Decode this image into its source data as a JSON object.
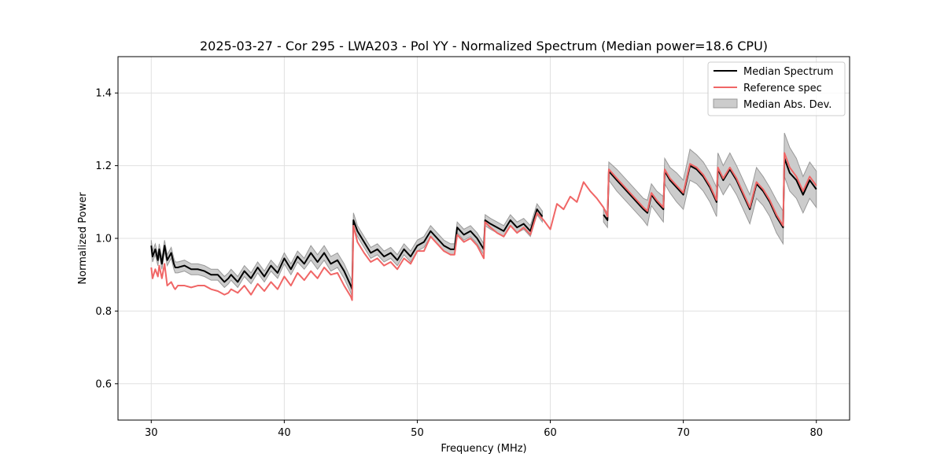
{
  "chart_data": {
    "type": "line",
    "title": "2025-03-27 - Cor 295 - LWA203 - Pol YY - Normalized Spectrum (Median power=18.6 CPU)",
    "xlabel": "Frequency (MHz)",
    "ylabel": "Normalized Power",
    "xlim": [
      27.5,
      82.5
    ],
    "ylim": [
      0.5,
      1.5
    ],
    "xticks": [
      30,
      40,
      50,
      60,
      70,
      80
    ],
    "yticks": [
      0.6,
      0.8,
      1.0,
      1.2,
      1.4
    ],
    "grid": true,
    "legend_position": "top-right",
    "legend": [
      "Median Spectrum",
      "Reference spec",
      "Median Abs. Dev."
    ],
    "colors": {
      "median": "#000000",
      "reference": "#f06666",
      "mad_fill": "#cccccc",
      "mad_edge": "#999999",
      "grid": "#e0e0e0"
    },
    "series": [
      {
        "name": "Median Spectrum",
        "x": [
          30.0,
          30.1,
          30.3,
          30.5,
          30.6,
          30.8,
          31.0,
          31.2,
          31.5,
          31.7,
          31.8,
          32.0,
          32.5,
          33.0,
          33.5,
          34.0,
          34.5,
          35.0,
          35.5,
          35.8,
          36.0,
          36.5,
          37.0,
          37.5,
          38.0,
          38.5,
          39.0,
          39.5,
          40.0,
          40.5,
          41.0,
          41.5,
          42.0,
          42.5,
          43.0,
          43.5,
          44.0,
          44.5,
          45.0,
          45.1,
          45.2,
          45.5,
          46.0,
          46.5,
          47.0,
          47.5,
          48.0,
          48.5,
          49.0,
          49.5,
          50.0,
          50.5,
          51.0,
          51.5,
          52.0,
          52.5,
          52.8,
          53.0,
          53.5,
          54.0,
          54.5,
          55.0,
          55.1,
          55.5,
          56.0,
          56.5,
          57.0,
          57.5,
          58.0,
          58.5,
          59.0,
          59.4
        ],
        "values": [
          0.98,
          0.95,
          0.97,
          0.94,
          0.97,
          0.93,
          0.98,
          0.94,
          0.96,
          0.93,
          0.92,
          0.92,
          0.925,
          0.915,
          0.915,
          0.91,
          0.9,
          0.9,
          0.88,
          0.89,
          0.9,
          0.88,
          0.91,
          0.89,
          0.92,
          0.895,
          0.925,
          0.905,
          0.945,
          0.915,
          0.95,
          0.93,
          0.96,
          0.935,
          0.96,
          0.93,
          0.94,
          0.91,
          0.87,
          0.86,
          1.05,
          1.02,
          0.99,
          0.96,
          0.97,
          0.95,
          0.96,
          0.94,
          0.97,
          0.95,
          0.98,
          0.99,
          1.02,
          1.0,
          0.98,
          0.97,
          0.97,
          1.03,
          1.01,
          1.02,
          1.0,
          0.97,
          1.05,
          1.04,
          1.03,
          1.02,
          1.05,
          1.03,
          1.04,
          1.02,
          1.08,
          1.06
        ]
      },
      {
        "name": "Median Spectrum (upper band)",
        "x": [
          64.0,
          64.3,
          64.4,
          65.0,
          65.5,
          66.0,
          66.5,
          67.0,
          67.3,
          67.6,
          68.0,
          68.5,
          68.6,
          69.0,
          69.5,
          70.0,
          70.5,
          71.0,
          71.5,
          72.0,
          72.5,
          72.6,
          73.0,
          73.5,
          74.0,
          74.5,
          75.0,
          75.5,
          76.0,
          76.5,
          77.0,
          77.5,
          77.6,
          78.0,
          78.5,
          79.0,
          79.5,
          80.0
        ],
        "values": [
          1.065,
          1.05,
          1.185,
          1.16,
          1.14,
          1.12,
          1.1,
          1.08,
          1.07,
          1.12,
          1.1,
          1.08,
          1.185,
          1.16,
          1.14,
          1.12,
          1.2,
          1.19,
          1.17,
          1.14,
          1.1,
          1.19,
          1.16,
          1.19,
          1.16,
          1.12,
          1.08,
          1.15,
          1.13,
          1.1,
          1.06,
          1.03,
          1.22,
          1.18,
          1.16,
          1.12,
          1.16,
          1.135
        ]
      },
      {
        "name": "Reference spec",
        "x": [
          30.0,
          30.1,
          30.3,
          30.5,
          30.6,
          30.8,
          31.0,
          31.2,
          31.5,
          31.7,
          31.8,
          32.0,
          32.5,
          33.0,
          33.5,
          34.0,
          34.5,
          35.0,
          35.5,
          35.8,
          36.0,
          36.5,
          37.0,
          37.5,
          38.0,
          38.5,
          39.0,
          39.5,
          40.0,
          40.5,
          41.0,
          41.5,
          42.0,
          42.5,
          43.0,
          43.5,
          44.0,
          44.5,
          45.0,
          45.1,
          45.2,
          45.5,
          46.0,
          46.5,
          47.0,
          47.5,
          48.0,
          48.5,
          49.0,
          49.5,
          50.0,
          50.5,
          51.0,
          51.5,
          52.0,
          52.5,
          52.8,
          53.0,
          53.5,
          54.0,
          54.5,
          55.0,
          55.1,
          55.5,
          56.0,
          56.5,
          57.0,
          57.5,
          58.0,
          58.5,
          59.0,
          59.5,
          60.0,
          60.5,
          61.0,
          61.5,
          62.0,
          62.5,
          63.0,
          63.5,
          64.0,
          64.3,
          64.4,
          65.0,
          65.5,
          66.0,
          66.5,
          67.0,
          67.3,
          67.6,
          68.0,
          68.5,
          68.6,
          69.0,
          69.5,
          70.0,
          70.5,
          71.0,
          71.5,
          72.0,
          72.5,
          72.6,
          73.0,
          73.5,
          74.0,
          74.5,
          75.0,
          75.5,
          76.0,
          76.5,
          77.0,
          77.5,
          77.6,
          78.0,
          78.5,
          79.0,
          79.5,
          80.0
        ],
        "values": [
          0.92,
          0.89,
          0.915,
          0.895,
          0.925,
          0.89,
          0.93,
          0.87,
          0.88,
          0.865,
          0.86,
          0.87,
          0.87,
          0.865,
          0.87,
          0.87,
          0.86,
          0.855,
          0.845,
          0.85,
          0.86,
          0.85,
          0.87,
          0.845,
          0.875,
          0.855,
          0.88,
          0.86,
          0.895,
          0.87,
          0.905,
          0.885,
          0.91,
          0.89,
          0.92,
          0.9,
          0.905,
          0.87,
          0.84,
          0.83,
          1.035,
          0.99,
          0.96,
          0.935,
          0.945,
          0.925,
          0.935,
          0.915,
          0.945,
          0.93,
          0.965,
          0.965,
          1.005,
          0.985,
          0.965,
          0.955,
          0.955,
          1.01,
          0.99,
          1.0,
          0.98,
          0.945,
          1.045,
          1.03,
          1.015,
          1.005,
          1.035,
          1.015,
          1.03,
          1.01,
          1.07,
          1.05,
          1.025,
          1.095,
          1.08,
          1.115,
          1.1,
          1.155,
          1.13,
          1.11,
          1.085,
          1.06,
          1.19,
          1.165,
          1.145,
          1.125,
          1.105,
          1.085,
          1.075,
          1.125,
          1.105,
          1.085,
          1.19,
          1.165,
          1.145,
          1.125,
          1.205,
          1.195,
          1.175,
          1.145,
          1.105,
          1.195,
          1.165,
          1.195,
          1.165,
          1.125,
          1.085,
          1.155,
          1.135,
          1.105,
          1.065,
          1.035,
          1.235,
          1.195,
          1.17,
          1.13,
          1.17,
          1.145
        ]
      }
    ],
    "bands": [
      {
        "name": "Median Abs. Dev.",
        "segments": [
          {
            "x": [
              30.0,
              30.1,
              30.3,
              30.5,
              30.6,
              30.8,
              31.0,
              31.2,
              31.5,
              31.7,
              31.8,
              32.0,
              32.5,
              33.0,
              33.5,
              34.0,
              34.5,
              35.0,
              35.5,
              35.8,
              36.0,
              36.5,
              37.0,
              37.5,
              38.0,
              38.5,
              39.0,
              39.5,
              40.0,
              40.5,
              41.0,
              41.5,
              42.0,
              42.5,
              43.0,
              43.5,
              44.0,
              44.5,
              45.0,
              45.1,
              45.2,
              45.5,
              46.0,
              46.5,
              47.0,
              47.5,
              48.0,
              48.5,
              49.0,
              49.5,
              50.0,
              50.5,
              51.0,
              51.5,
              52.0,
              52.5,
              52.8,
              53.0,
              53.5,
              54.0,
              54.5,
              55.0,
              55.1,
              55.5,
              56.0,
              56.5,
              57.0,
              57.5,
              58.0,
              58.5,
              59.0,
              59.4
            ],
            "lower": [
              0.965,
              0.935,
              0.955,
              0.925,
              0.955,
              0.915,
              0.965,
              0.925,
              0.945,
              0.915,
              0.905,
              0.905,
              0.91,
              0.9,
              0.9,
              0.895,
              0.885,
              0.885,
              0.865,
              0.875,
              0.885,
              0.865,
              0.895,
              0.875,
              0.905,
              0.88,
              0.91,
              0.89,
              0.93,
              0.9,
              0.935,
              0.915,
              0.94,
              0.915,
              0.94,
              0.91,
              0.92,
              0.89,
              0.85,
              0.84,
              1.03,
              1.005,
              0.975,
              0.945,
              0.955,
              0.935,
              0.945,
              0.925,
              0.955,
              0.935,
              0.965,
              0.975,
              1.005,
              0.985,
              0.965,
              0.955,
              0.955,
              1.015,
              0.995,
              1.005,
              0.985,
              0.955,
              1.035,
              1.025,
              1.015,
              1.005,
              1.035,
              1.015,
              1.025,
              1.005,
              1.065,
              1.045
            ],
            "upper": [
              0.995,
              0.965,
              0.985,
              0.955,
              0.985,
              0.945,
              0.995,
              0.955,
              0.975,
              0.945,
              0.935,
              0.935,
              0.94,
              0.93,
              0.93,
              0.925,
              0.915,
              0.915,
              0.895,
              0.905,
              0.915,
              0.895,
              0.925,
              0.905,
              0.935,
              0.91,
              0.94,
              0.92,
              0.96,
              0.93,
              0.965,
              0.945,
              0.98,
              0.955,
              0.98,
              0.95,
              0.96,
              0.93,
              0.89,
              0.88,
              1.07,
              1.035,
              1.005,
              0.975,
              0.985,
              0.965,
              0.975,
              0.955,
              0.985,
              0.965,
              0.995,
              1.005,
              1.035,
              1.015,
              0.995,
              0.985,
              0.985,
              1.045,
              1.025,
              1.035,
              1.015,
              0.985,
              1.065,
              1.055,
              1.045,
              1.035,
              1.065,
              1.045,
              1.055,
              1.035,
              1.095,
              1.075
            ]
          },
          {
            "x": [
              64.0,
              64.3,
              64.4,
              65.0,
              65.5,
              66.0,
              66.5,
              67.0,
              67.3,
              67.6,
              68.0,
              68.5,
              68.6,
              69.0,
              69.5,
              70.0,
              70.5,
              71.0,
              71.5,
              72.0,
              72.5,
              72.6,
              73.0,
              73.5,
              74.0,
              74.5,
              75.0,
              75.5,
              76.0,
              76.5,
              77.0,
              77.5,
              77.6,
              78.0,
              78.5,
              79.0,
              79.5,
              80.0
            ],
            "lower": [
              1.045,
              1.03,
              1.16,
              1.13,
              1.11,
              1.09,
              1.07,
              1.05,
              1.035,
              1.09,
              1.07,
              1.045,
              1.15,
              1.125,
              1.1,
              1.08,
              1.16,
              1.15,
              1.13,
              1.1,
              1.06,
              1.15,
              1.12,
              1.15,
              1.12,
              1.08,
              1.04,
              1.11,
              1.09,
              1.06,
              1.015,
              0.985,
              1.17,
              1.13,
              1.11,
              1.07,
              1.11,
              1.085
            ],
            "upper": [
              1.085,
              1.07,
              1.21,
              1.19,
              1.17,
              1.15,
              1.13,
              1.11,
              1.105,
              1.15,
              1.13,
              1.115,
              1.22,
              1.195,
              1.18,
              1.16,
              1.245,
              1.23,
              1.21,
              1.18,
              1.14,
              1.235,
              1.2,
              1.235,
              1.2,
              1.16,
              1.12,
              1.195,
              1.17,
              1.14,
              1.105,
              1.075,
              1.29,
              1.25,
              1.22,
              1.17,
              1.21,
              1.185
            ]
          }
        ]
      }
    ]
  }
}
